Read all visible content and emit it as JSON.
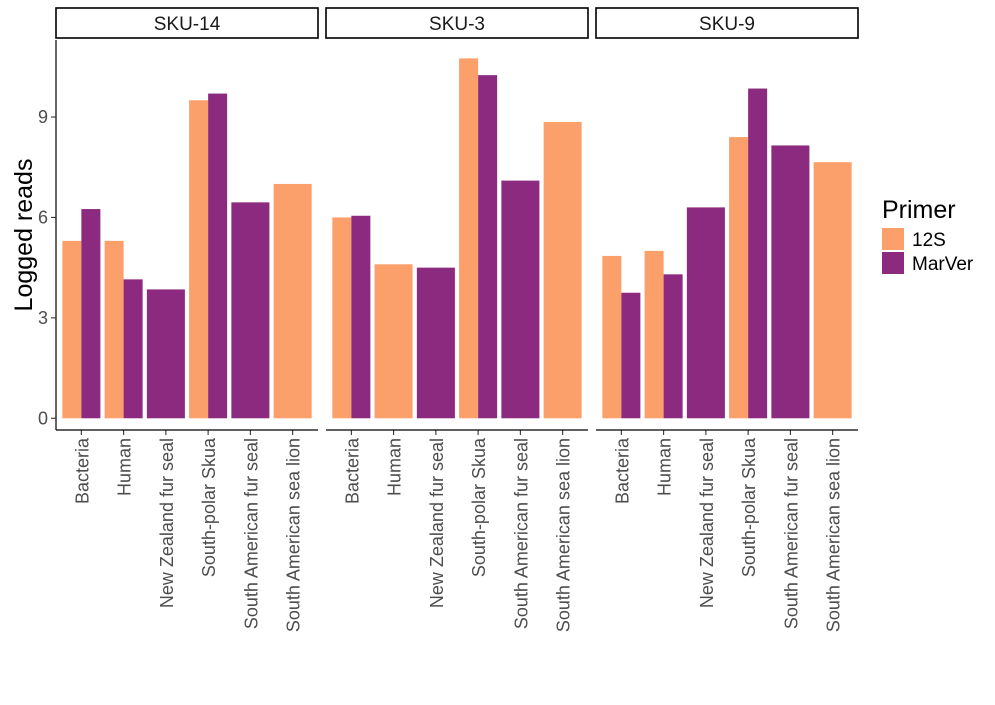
{
  "chart_data": {
    "type": "bar",
    "ylabel": "Logged reads",
    "xlabel": "",
    "ylim": [
      -0.35,
      11.3
    ],
    "yticks": [
      0,
      3,
      6,
      9
    ],
    "grid": false,
    "legend": {
      "title": "Primer",
      "position": "right",
      "entries": [
        {
          "label": "12S",
          "color": "#FCA06B"
        },
        {
          "label": "MarVer",
          "color": "#8B2A7E"
        }
      ]
    },
    "categories": [
      "Bacteria",
      "Human",
      "New Zealand fur seal",
      "South-polar Skua",
      "South American fur seal",
      "South American sea lion"
    ],
    "series_names": [
      "12S",
      "MarVer"
    ],
    "colors": {
      "12S": "#FCA06B",
      "MarVer": "#8B2A7E"
    },
    "panels": [
      {
        "title": "SKU-14",
        "values": {
          "12S": [
            5.3,
            5.3,
            null,
            9.5,
            null,
            7.0
          ],
          "MarVer": [
            6.25,
            4.15,
            3.85,
            9.7,
            6.45,
            null
          ]
        }
      },
      {
        "title": "SKU-3",
        "values": {
          "12S": [
            6.0,
            4.6,
            null,
            10.75,
            null,
            8.85
          ],
          "MarVer": [
            6.05,
            null,
            4.5,
            10.25,
            7.1,
            null
          ]
        }
      },
      {
        "title": "SKU-9",
        "values": {
          "12S": [
            4.85,
            5.0,
            null,
            8.4,
            null,
            7.65
          ],
          "MarVer": [
            3.75,
            4.3,
            6.3,
            9.85,
            8.15,
            null
          ]
        }
      }
    ]
  }
}
